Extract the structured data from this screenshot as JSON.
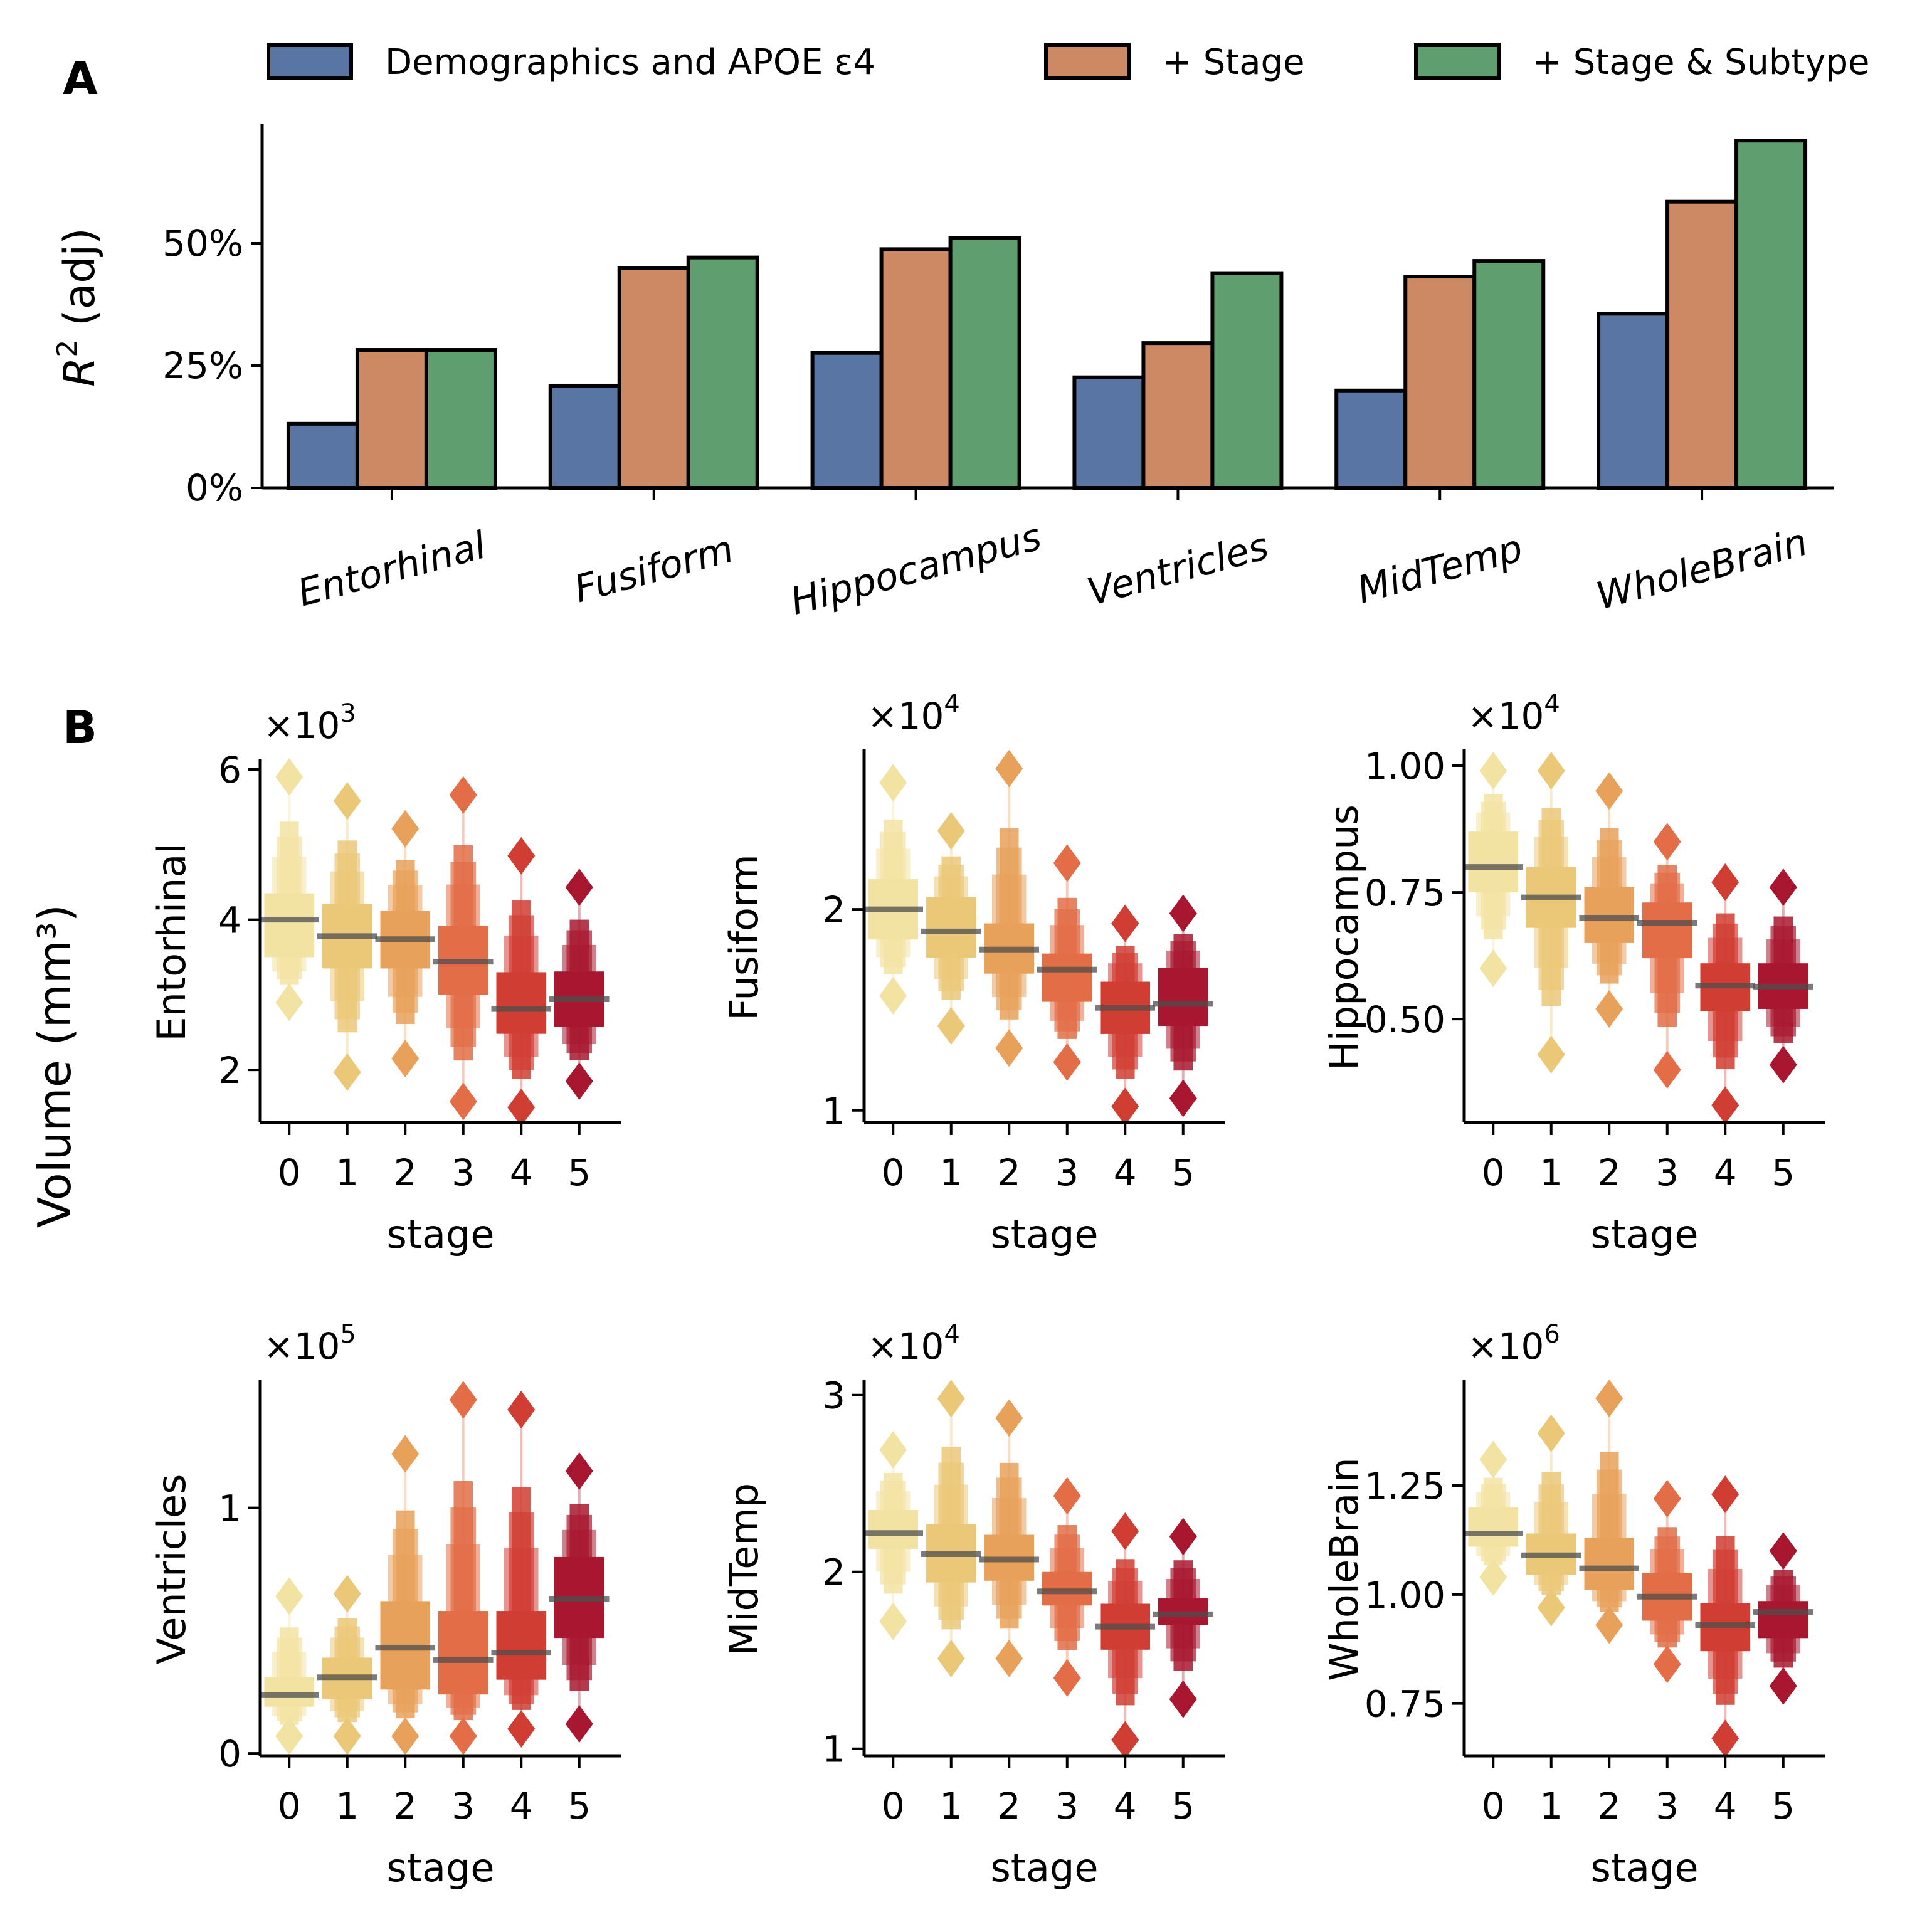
{
  "panel_a": {
    "letter": "A",
    "legend": [
      {
        "label": "Demographics and APOE ε4",
        "color": "#5975a4"
      },
      {
        "label": "+ Stage",
        "color": "#cc8963"
      },
      {
        "label": "+ Stage & Subtype",
        "color": "#5f9e6e"
      }
    ],
    "ylabel_main": "R",
    "ylabel_sup": "2",
    "ylabel_rest": " (adj)",
    "ytick_labels": [
      "0%",
      "25%",
      "50%"
    ]
  },
  "panel_b": {
    "letter": "B",
    "ylabel": "Volume (mm³)",
    "xlabel": "stage",
    "stage_colors": [
      "#f3e3a3",
      "#ebc878",
      "#e8a15a",
      "#e26d46",
      "#d03d33",
      "#a8172f"
    ]
  },
  "chart_data": [
    {
      "type": "bar",
      "title": "A",
      "xlabel": "",
      "ylabel": "R² (adj)",
      "categories": [
        "Entorhinal",
        "Fusiform",
        "Hippocampus",
        "Ventricles",
        "MidTemp",
        "WholeBrain"
      ],
      "yticks": [
        0,
        25,
        50
      ],
      "ytick_format": "percent",
      "ylim": [
        0,
        74
      ],
      "grid": false,
      "legend_position": "top",
      "series": [
        {
          "name": "Demographics and APOE ε4",
          "color": "#5975a4",
          "values": [
            13.1,
            20.9,
            27.6,
            22.6,
            19.9,
            35.6
          ]
        },
        {
          "name": "+ Stage",
          "color": "#cc8963",
          "values": [
            28.2,
            45.0,
            48.8,
            29.6,
            43.2,
            58.5
          ]
        },
        {
          "name": "+ Stage & Subtype",
          "color": "#5f9e6e",
          "values": [
            28.2,
            47.1,
            51.1,
            43.9,
            46.4,
            71.0
          ]
        }
      ]
    },
    {
      "type": "boxen",
      "title": "Entorhinal",
      "xlabel": "stage",
      "ylabel": "Entorhinal",
      "scale_label": "×10",
      "scale_exp": "3",
      "categories": [
        "0",
        "1",
        "2",
        "3",
        "4",
        "5"
      ],
      "ylim": [
        1.3,
        6.1
      ],
      "yticks": [
        2,
        4,
        6
      ],
      "ytick_labels": [
        "2",
        "4",
        "6"
      ],
      "median": [
        4.0,
        3.78,
        3.74,
        3.44,
        2.81,
        2.94
      ],
      "q1": [
        3.5,
        3.35,
        3.35,
        3.0,
        2.48,
        2.57
      ],
      "q3": [
        4.35,
        4.21,
        4.12,
        3.92,
        3.3,
        3.31
      ],
      "lower_outlier": [
        2.9,
        1.97,
        2.15,
        1.58,
        1.5,
        1.85
      ],
      "upper_outlier": [
        5.9,
        5.58,
        5.21,
        5.66,
        4.85,
        4.43
      ]
    },
    {
      "type": "boxen",
      "title": "Fusiform",
      "xlabel": "stage",
      "ylabel": "Fusiform",
      "scale_label": "×10",
      "scale_exp": "4",
      "categories": [
        "0",
        "1",
        "2",
        "3",
        "4",
        "5"
      ],
      "ylim": [
        0.94,
        2.78
      ],
      "yticks": [
        1,
        2
      ],
      "ytick_labels": [
        "1",
        "2"
      ],
      "median": [
        2.0,
        1.89,
        1.8,
        1.7,
        1.51,
        1.53
      ],
      "q1": [
        1.85,
        1.76,
        1.68,
        1.54,
        1.38,
        1.42
      ],
      "q3": [
        2.15,
        2.06,
        1.93,
        1.78,
        1.64,
        1.71
      ],
      "lower_outlier": [
        1.57,
        1.42,
        1.31,
        1.24,
        1.02,
        1.06
      ],
      "upper_outlier": [
        2.63,
        2.39,
        2.7,
        2.23,
        1.93,
        1.98
      ]
    },
    {
      "type": "boxen",
      "title": "Hippocampus",
      "xlabel": "stage",
      "ylabel": "Hippocampus",
      "scale_label": "×10",
      "scale_exp": "4",
      "categories": [
        "0",
        "1",
        "2",
        "3",
        "4",
        "5"
      ],
      "ylim": [
        0.296,
        1.026
      ],
      "yticks": [
        0.5,
        0.75,
        1.0
      ],
      "ytick_labels": [
        "0.50",
        "0.75",
        "1.00"
      ],
      "median": [
        0.8,
        0.74,
        0.7,
        0.69,
        0.566,
        0.564
      ],
      "q1": [
        0.75,
        0.68,
        0.65,
        0.62,
        0.515,
        0.52
      ],
      "q3": [
        0.87,
        0.8,
        0.76,
        0.73,
        0.61,
        0.61
      ],
      "lower_outlier": [
        0.6,
        0.43,
        0.52,
        0.4,
        0.33,
        0.41
      ],
      "upper_outlier": [
        0.99,
        0.99,
        0.95,
        0.85,
        0.77,
        0.76
      ]
    },
    {
      "type": "boxen",
      "title": "Ventricles",
      "xlabel": "stage",
      "ylabel": "Ventricles",
      "scale_label": "×10",
      "scale_exp": "5",
      "categories": [
        "0",
        "1",
        "2",
        "3",
        "4",
        "5"
      ],
      "ylim": [
        -0.01,
        1.51
      ],
      "yticks": [
        0,
        1
      ],
      "ytick_labels": [
        "0",
        "1"
      ],
      "median": [
        0.237,
        0.31,
        0.43,
        0.38,
        0.41,
        0.63
      ],
      "q1": [
        0.19,
        0.22,
        0.26,
        0.24,
        0.3,
        0.47
      ],
      "q3": [
        0.31,
        0.39,
        0.62,
        0.58,
        0.58,
        0.8
      ],
      "lower_outlier": [
        0.07,
        0.07,
        0.07,
        0.07,
        0.1,
        0.12
      ],
      "upper_outlier": [
        0.64,
        0.65,
        1.22,
        1.44,
        1.4,
        1.15
      ]
    },
    {
      "type": "boxen",
      "title": "MidTemp",
      "xlabel": "stage",
      "ylabel": "MidTemp",
      "scale_label": "×10",
      "scale_exp": "4",
      "categories": [
        "0",
        "1",
        "2",
        "3",
        "4",
        "5"
      ],
      "ylim": [
        0.96,
        3.07
      ],
      "yticks": [
        1,
        2,
        3
      ],
      "ytick_labels": [
        "1",
        "2",
        "3"
      ],
      "median": [
        2.22,
        2.1,
        2.07,
        1.89,
        1.69,
        1.76
      ],
      "q1": [
        2.13,
        1.94,
        1.95,
        1.81,
        1.56,
        1.7
      ],
      "q3": [
        2.35,
        2.27,
        2.21,
        2.0,
        1.82,
        1.85
      ],
      "lower_outlier": [
        1.72,
        1.51,
        1.51,
        1.4,
        1.05,
        1.28
      ],
      "upper_outlier": [
        2.69,
        2.98,
        2.87,
        2.43,
        2.23,
        2.2
      ]
    },
    {
      "type": "boxen",
      "title": "WholeBrain",
      "xlabel": "stage",
      "ylabel": "WholeBrain",
      "scale_label": "×10",
      "scale_exp": "6",
      "categories": [
        "0",
        "1",
        "2",
        "3",
        "4",
        "5"
      ],
      "ylim": [
        0.63,
        1.486
      ],
      "yticks": [
        0.75,
        1.0,
        1.25
      ],
      "ytick_labels": [
        "0.75",
        "1.00",
        "1.25"
      ],
      "median": [
        1.14,
        1.09,
        1.06,
        0.995,
        0.93,
        0.96
      ],
      "q1": [
        1.11,
        1.045,
        1.01,
        0.94,
        0.87,
        0.9
      ],
      "q3": [
        1.2,
        1.14,
        1.13,
        1.05,
        0.98,
        0.985
      ],
      "lower_outlier": [
        1.04,
        0.97,
        0.93,
        0.84,
        0.67,
        0.79
      ],
      "upper_outlier": [
        1.31,
        1.37,
        1.45,
        1.22,
        1.23,
        1.1
      ]
    }
  ]
}
